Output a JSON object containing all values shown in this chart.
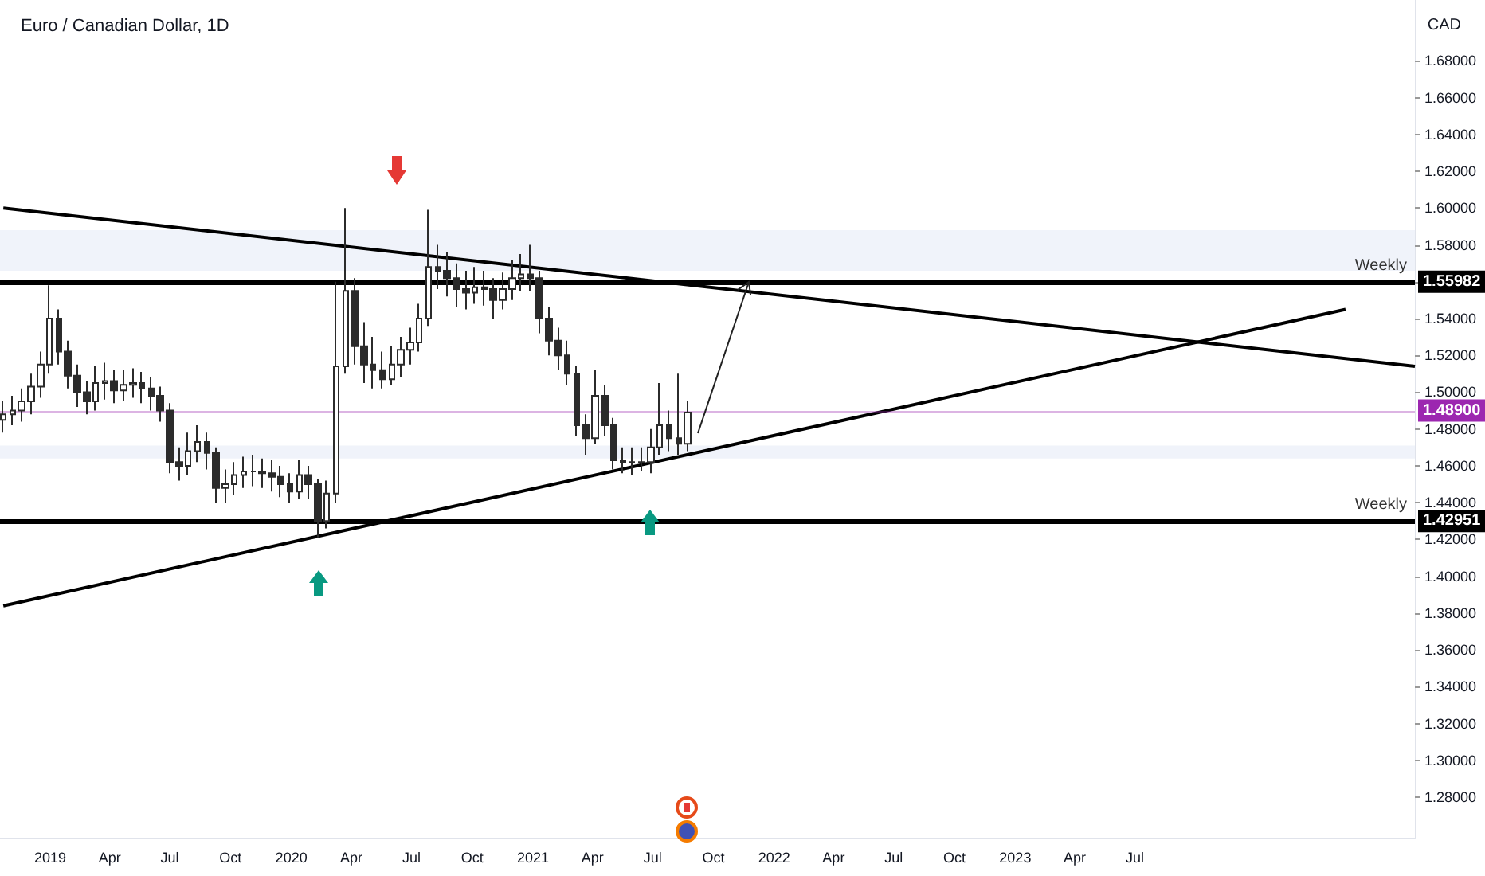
{
  "chart_data": {
    "type": "candlestick",
    "title": "Euro / Canadian Dollar, 1D",
    "ylabel": "CAD",
    "color": "#2b2b2b",
    "x": [
      "2018-10-22",
      "2018-11-05",
      "2018-11-19",
      "2018-12-03",
      "2018-12-17",
      "2018-12-31",
      "2019-01-14",
      "2019-01-28",
      "2019-02-11",
      "2019-02-25",
      "2019-03-11",
      "2019-03-25",
      "2019-04-08",
      "2019-04-22",
      "2019-05-06",
      "2019-05-20",
      "2019-06-03",
      "2019-06-17",
      "2019-07-01",
      "2019-07-15",
      "2019-07-29",
      "2019-08-12",
      "2019-08-26",
      "2019-09-09",
      "2019-09-23",
      "2019-10-07",
      "2019-10-21",
      "2019-11-04",
      "2019-11-18",
      "2019-12-02",
      "2019-12-16",
      "2019-12-30",
      "2020-01-13",
      "2020-01-27",
      "2020-02-10",
      "2020-02-24",
      "2020-03-09",
      "2020-03-23",
      "2020-04-06",
      "2020-04-20",
      "2020-05-04",
      "2020-05-18",
      "2020-06-01",
      "2020-06-15",
      "2020-06-29",
      "2020-07-13",
      "2020-07-27",
      "2020-08-10",
      "2020-08-24",
      "2020-09-07",
      "2020-09-21",
      "2020-10-05",
      "2020-10-19",
      "2020-11-02",
      "2020-11-16",
      "2020-11-30",
      "2020-12-14",
      "2020-12-28",
      "2021-01-11",
      "2021-01-25",
      "2021-02-08",
      "2021-02-22",
      "2021-03-08",
      "2021-03-22",
      "2021-04-05",
      "2021-04-19",
      "2021-05-03",
      "2021-05-17",
      "2021-05-31",
      "2021-06-14",
      "2021-06-28",
      "2021-07-12",
      "2021-07-26",
      "2021-08-09",
      "2021-08-23"
    ],
    "ohlc": [
      [
        1.485,
        1.495,
        1.478,
        1.488
      ],
      [
        1.488,
        1.498,
        1.482,
        1.49
      ],
      [
        1.49,
        1.502,
        1.484,
        1.495
      ],
      [
        1.495,
        1.51,
        1.488,
        1.503
      ],
      [
        1.503,
        1.522,
        1.497,
        1.515
      ],
      [
        1.515,
        1.558,
        1.51,
        1.54
      ],
      [
        1.54,
        1.545,
        1.515,
        1.522
      ],
      [
        1.522,
        1.528,
        1.502,
        1.509
      ],
      [
        1.509,
        1.515,
        1.492,
        1.5
      ],
      [
        1.5,
        1.506,
        1.488,
        1.495
      ],
      [
        1.495,
        1.514,
        1.49,
        1.505
      ],
      [
        1.505,
        1.516,
        1.496,
        1.506
      ],
      [
        1.506,
        1.512,
        1.494,
        1.501
      ],
      [
        1.501,
        1.512,
        1.495,
        1.504
      ],
      [
        1.504,
        1.513,
        1.497,
        1.505
      ],
      [
        1.505,
        1.511,
        1.494,
        1.502
      ],
      [
        1.502,
        1.508,
        1.49,
        1.498
      ],
      [
        1.498,
        1.503,
        1.484,
        1.49
      ],
      [
        1.49,
        1.494,
        1.456,
        1.462
      ],
      [
        1.462,
        1.47,
        1.452,
        1.46
      ],
      [
        1.46,
        1.478,
        1.455,
        1.468
      ],
      [
        1.468,
        1.482,
        1.462,
        1.473
      ],
      [
        1.473,
        1.478,
        1.458,
        1.467
      ],
      [
        1.467,
        1.47,
        1.44,
        1.448
      ],
      [
        1.448,
        1.458,
        1.44,
        1.45
      ],
      [
        1.45,
        1.462,
        1.444,
        1.455
      ],
      [
        1.455,
        1.465,
        1.448,
        1.457
      ],
      [
        1.457,
        1.466,
        1.449,
        1.457
      ],
      [
        1.457,
        1.464,
        1.448,
        1.456
      ],
      [
        1.456,
        1.463,
        1.446,
        1.454
      ],
      [
        1.454,
        1.46,
        1.443,
        1.45
      ],
      [
        1.45,
        1.456,
        1.44,
        1.446
      ],
      [
        1.446,
        1.463,
        1.442,
        1.455
      ],
      [
        1.455,
        1.46,
        1.442,
        1.45
      ],
      [
        1.45,
        1.453,
        1.421,
        1.43
      ],
      [
        1.43,
        1.452,
        1.426,
        1.445
      ],
      [
        1.445,
        1.56,
        1.44,
        1.514
      ],
      [
        1.514,
        1.6,
        1.51,
        1.555
      ],
      [
        1.555,
        1.562,
        1.515,
        1.525
      ],
      [
        1.525,
        1.538,
        1.505,
        1.515
      ],
      [
        1.515,
        1.53,
        1.502,
        1.512
      ],
      [
        1.512,
        1.522,
        1.502,
        1.507
      ],
      [
        1.507,
        1.525,
        1.504,
        1.515
      ],
      [
        1.515,
        1.53,
        1.508,
        1.523
      ],
      [
        1.523,
        1.535,
        1.515,
        1.527
      ],
      [
        1.527,
        1.548,
        1.522,
        1.54
      ],
      [
        1.54,
        1.599,
        1.536,
        1.568
      ],
      [
        1.568,
        1.58,
        1.556,
        1.566
      ],
      [
        1.566,
        1.576,
        1.552,
        1.562
      ],
      [
        1.562,
        1.57,
        1.546,
        1.556
      ],
      [
        1.556,
        1.566,
        1.545,
        1.554
      ],
      [
        1.554,
        1.568,
        1.548,
        1.557
      ],
      [
        1.557,
        1.566,
        1.547,
        1.556
      ],
      [
        1.556,
        1.562,
        1.54,
        1.55
      ],
      [
        1.55,
        1.565,
        1.545,
        1.556
      ],
      [
        1.556,
        1.572,
        1.55,
        1.562
      ],
      [
        1.562,
        1.575,
        1.555,
        1.564
      ],
      [
        1.564,
        1.58,
        1.555,
        1.562
      ],
      [
        1.562,
        1.566,
        1.532,
        1.54
      ],
      [
        1.54,
        1.546,
        1.52,
        1.528
      ],
      [
        1.528,
        1.535,
        1.512,
        1.52
      ],
      [
        1.52,
        1.528,
        1.504,
        1.51
      ],
      [
        1.51,
        1.514,
        1.476,
        1.482
      ],
      [
        1.482,
        1.488,
        1.466,
        1.475
      ],
      [
        1.475,
        1.512,
        1.472,
        1.498
      ],
      [
        1.498,
        1.504,
        1.476,
        1.482
      ],
      [
        1.482,
        1.486,
        1.458,
        1.463
      ],
      [
        1.463,
        1.47,
        1.456,
        1.462
      ],
      [
        1.462,
        1.47,
        1.455,
        1.462
      ],
      [
        1.462,
        1.47,
        1.457,
        1.462
      ],
      [
        1.462,
        1.48,
        1.456,
        1.47
      ],
      [
        1.47,
        1.505,
        1.466,
        1.482
      ],
      [
        1.482,
        1.49,
        1.468,
        1.475
      ],
      [
        1.475,
        1.51,
        1.466,
        1.472
      ],
      [
        1.472,
        1.495,
        1.468,
        1.489
      ]
    ],
    "series": [
      {
        "type": "line",
        "color": "#000000",
        "x": [
          "2018-10-22",
          "2024-08-28"
        ],
        "values": [
          1.6,
          1.514
        ]
      },
      {
        "type": "line",
        "color": "#000000",
        "x": [
          "2018-10-22",
          "2024-05-15"
        ],
        "values": [
          1.384,
          1.545
        ]
      }
    ],
    "xlim": [
      "2018-10-17",
      "2024-08-28"
    ],
    "xticks": [
      {
        "value": "2019-01-01",
        "label": "2019"
      },
      {
        "value": "2019-04-01",
        "label": "Apr"
      },
      {
        "value": "2019-07-01",
        "label": "Jul"
      },
      {
        "value": "2019-10-01",
        "label": "Oct"
      },
      {
        "value": "2020-01-01",
        "label": "2020"
      },
      {
        "value": "2020-04-01",
        "label": "Apr"
      },
      {
        "value": "2020-07-01",
        "label": "Jul"
      },
      {
        "value": "2020-10-01",
        "label": "Oct"
      },
      {
        "value": "2021-01-01",
        "label": "2021"
      },
      {
        "value": "2021-04-01",
        "label": "Apr"
      },
      {
        "value": "2021-07-01",
        "label": "Jul"
      },
      {
        "value": "2021-10-01",
        "label": "Oct"
      },
      {
        "value": "2022-01-01",
        "label": "2022"
      },
      {
        "value": "2022-04-01",
        "label": "Apr"
      },
      {
        "value": "2022-07-01",
        "label": "Jul"
      },
      {
        "value": "2022-10-01",
        "label": "Oct"
      },
      {
        "value": "2023-01-01",
        "label": "2023"
      },
      {
        "value": "2023-04-01",
        "label": "Apr"
      },
      {
        "value": "2023-07-01",
        "label": "Jul"
      }
    ],
    "ylim": [
      1.258,
      1.713
    ],
    "yticks": [
      {
        "value": 1.28,
        "label": "1.28000"
      },
      {
        "value": 1.3,
        "label": "1.30000"
      },
      {
        "value": 1.32,
        "label": "1.32000"
      },
      {
        "value": 1.34,
        "label": "1.34000"
      },
      {
        "value": 1.36,
        "label": "1.36000"
      },
      {
        "value": 1.38,
        "label": "1.38000"
      },
      {
        "value": 1.4,
        "label": "1.40000"
      },
      {
        "value": 1.42,
        "label": "1.42000"
      },
      {
        "value": 1.44,
        "label": "1.44000"
      },
      {
        "value": 1.46,
        "label": "1.46000"
      },
      {
        "value": 1.48,
        "label": "1.48000"
      },
      {
        "value": 1.5,
        "label": "1.50000"
      },
      {
        "value": 1.52,
        "label": "1.52000"
      },
      {
        "value": 1.54,
        "label": "1.54000"
      },
      {
        "value": 1.56,
        "label": null
      },
      {
        "value": 1.58,
        "label": "1.58000"
      },
      {
        "value": 1.6,
        "label": "1.60000"
      },
      {
        "value": 1.62,
        "label": "1.62000"
      },
      {
        "value": 1.64,
        "label": "1.64000"
      },
      {
        "value": 1.66,
        "label": "1.66000"
      },
      {
        "value": 1.68,
        "label": "1.68000"
      }
    ],
    "ref_lines": [
      {
        "axis": "y",
        "value": 1.55982,
        "label": "Weekly",
        "color": "#000000"
      },
      {
        "axis": "y",
        "value": 1.42951,
        "label": "Weekly",
        "color": "#000000"
      },
      {
        "axis": "y",
        "value": 1.489,
        "color": "#9c27b0"
      }
    ],
    "bands": [
      {
        "axis": "y",
        "from": 1.566,
        "to": 1.588,
        "color": "#f0f3fa"
      },
      {
        "axis": "y",
        "from": 1.464,
        "to": 1.471,
        "color": "#f0f3fa"
      }
    ],
    "annotations": [
      {
        "text": "1.55982",
        "y": 1.55982
      },
      {
        "text": "1.48900",
        "y": 1.489
      },
      {
        "text": "1.42951",
        "y": 1.42951
      }
    ],
    "grid": false
  }
}
